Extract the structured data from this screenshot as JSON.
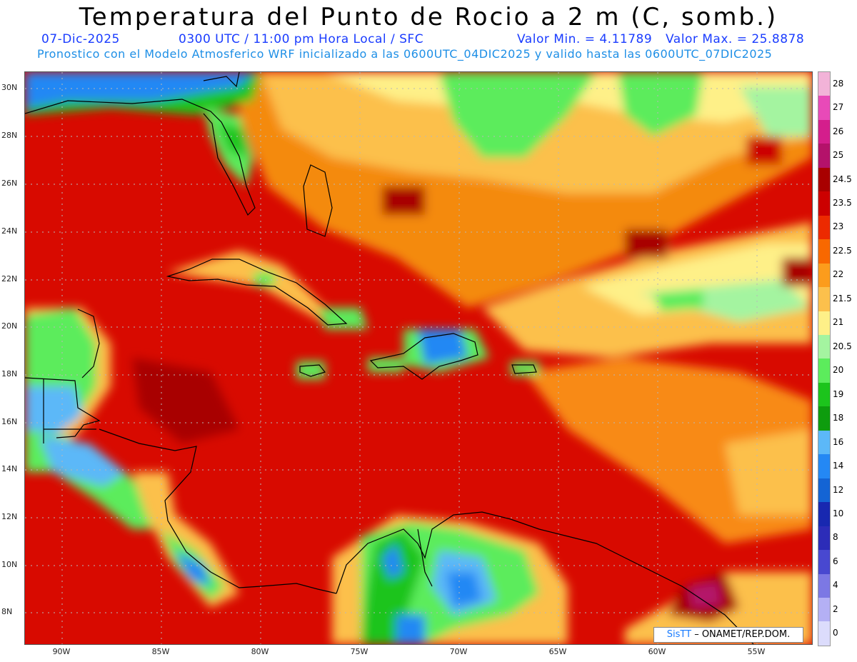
{
  "header": {
    "title": "Temperatura del Punto de Rocio a 2 m (C, somb.)",
    "date": "07-Dic-2025",
    "time": "0300 UTC / 11:00 pm Hora Local / SFC",
    "vmin": "Valor Min. = 4.11789",
    "vmax": "Valor Max. = 25.8878",
    "model_line": "Pronostico con el Modelo Atmosferico WRF inicializado a las 0600UTC_04DIC2025 y valido hasta las  0600UTC_07DIC2025"
  },
  "map": {
    "lat_labels": [
      "30N",
      "28N",
      "26N",
      "24N",
      "22N",
      "20N",
      "18N",
      "16N",
      "14N",
      "12N",
      "10N",
      "8N"
    ],
    "lon_labels": [
      "90W",
      "85W",
      "80W",
      "75W",
      "70W",
      "65W",
      "60W",
      "55W"
    ]
  },
  "colorbar": {
    "labels": [
      "28",
      "27",
      "26",
      "25",
      "24.5",
      "23.5",
      "23",
      "22.5",
      "22",
      "21.5",
      "21",
      "20.5",
      "20",
      "19",
      "18",
      "16",
      "14",
      "12",
      "10",
      "8",
      "6",
      "4",
      "2",
      "0"
    ],
    "colors": [
      "#f2b3d8",
      "#e84ab8",
      "#d41e8c",
      "#b4126a",
      "#a80000",
      "#cc0000",
      "#ec2a00",
      "#f86800",
      "#fc9c1c",
      "#fcc04c",
      "#fef088",
      "#a4f4a0",
      "#5cec5c",
      "#1cc41c",
      "#0e9c0e",
      "#5cb8f8",
      "#2488f4",
      "#1464d4",
      "#1828b0",
      "#2c2cb8",
      "#4848d0",
      "#7c78e4",
      "#b4b0f4",
      "#dcdcfc"
    ],
    "brand": "SisTT",
    "credit": "ONAMET/REP.DOM."
  }
}
